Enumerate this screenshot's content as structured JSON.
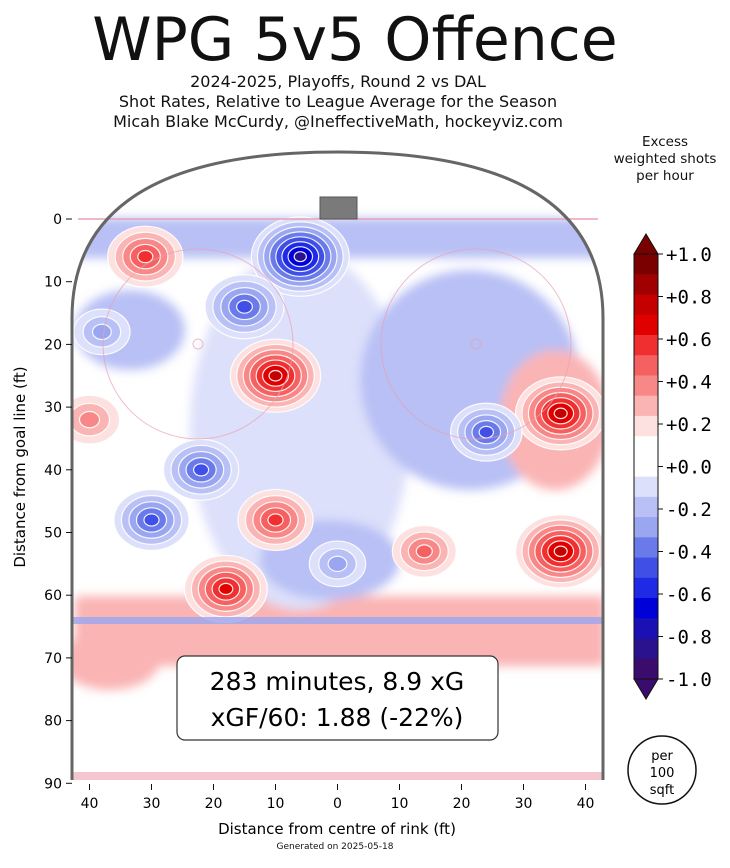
{
  "header": {
    "title": "WPG 5v5 Offence",
    "subtitle_lines": [
      "2024-2025, Playoffs, Round 2 vs DAL",
      "Shot Rates, Relative to League Average for the Season",
      "Micah Blake McCurdy, @IneffectiveMath, hockeyviz.com"
    ]
  },
  "footer": {
    "generated": "Generated on 2025-05-18"
  },
  "summary": {
    "line1": "283 minutes, 8.9 xG",
    "line2": "xGF/60: 1.88 (-22%)"
  },
  "per_badge": [
    "per",
    "100",
    "sqft"
  ],
  "colorbar": {
    "title_lines": [
      "Excess",
      "weighted shots",
      "per hour"
    ],
    "tick_labels": [
      "+1.0",
      "+0.8",
      "+0.6",
      "+0.4",
      "+0.2",
      "+0.0",
      "-0.2",
      "-0.4",
      "-0.6",
      "-0.8",
      "-1.0"
    ],
    "colors_top_to_bottom": [
      "#7a0000",
      "#a00000",
      "#c40000",
      "#e00000",
      "#f03030",
      "#f56060",
      "#f88888",
      "#fab4b4",
      "#fde0e0",
      "#ffffff",
      "#ffffff",
      "#dde0fa",
      "#b8c0f5",
      "#9aa6f0",
      "#6a7ae8",
      "#4050e6",
      "#1e2ae6",
      "#0000d8",
      "#1a10b4",
      "#2a128e",
      "#3a0c6c"
    ]
  },
  "colors": {
    "positive": "#e00000",
    "positive_light": "#fab4b4",
    "negative": "#1e2ae6",
    "negative_light": "#b8c0f5",
    "rink_outline": "#666666",
    "net": "#7a7a7a"
  },
  "chart_data": {
    "type": "heatmap",
    "title": "WPG 5v5 Offence",
    "xlabel": "Distance from centre of rink (ft)",
    "ylabel": "Distance from goal line (ft)",
    "xlim": [
      -42.5,
      42.5
    ],
    "ylim": [
      90,
      -11
    ],
    "x_ticks": [
      -40,
      -30,
      -20,
      -10,
      0,
      10,
      20,
      30,
      40
    ],
    "x_tick_labels": [
      "40",
      "30",
      "20",
      "10",
      "0",
      "10",
      "20",
      "30",
      "40"
    ],
    "y_ticks": [
      0,
      10,
      20,
      30,
      40,
      50,
      60,
      70,
      80,
      90
    ],
    "value_range": [
      -1.0,
      1.0
    ],
    "hotspots": [
      {
        "x": -31,
        "y": 6,
        "value": 0.55
      },
      {
        "x": -40,
        "y": 32,
        "value": 0.35
      },
      {
        "x": -10,
        "y": 25,
        "value": 0.75
      },
      {
        "x": -10,
        "y": 48,
        "value": 0.55
      },
      {
        "x": -18,
        "y": 59,
        "value": 0.65
      },
      {
        "x": 36,
        "y": 31,
        "value": 0.75
      },
      {
        "x": 36,
        "y": 53,
        "value": 0.75
      },
      {
        "x": 14,
        "y": 53,
        "value": 0.4
      },
      {
        "x": -6,
        "y": 6,
        "value": -0.85
      },
      {
        "x": -15,
        "y": 14,
        "value": -0.6
      },
      {
        "x": -22,
        "y": 40,
        "value": -0.55
      },
      {
        "x": -30,
        "y": 48,
        "value": -0.55
      },
      {
        "x": 24,
        "y": 34,
        "value": -0.5
      },
      {
        "x": 0,
        "y": 55,
        "value": -0.3
      },
      {
        "x": -38,
        "y": 18,
        "value": -0.3
      }
    ]
  }
}
